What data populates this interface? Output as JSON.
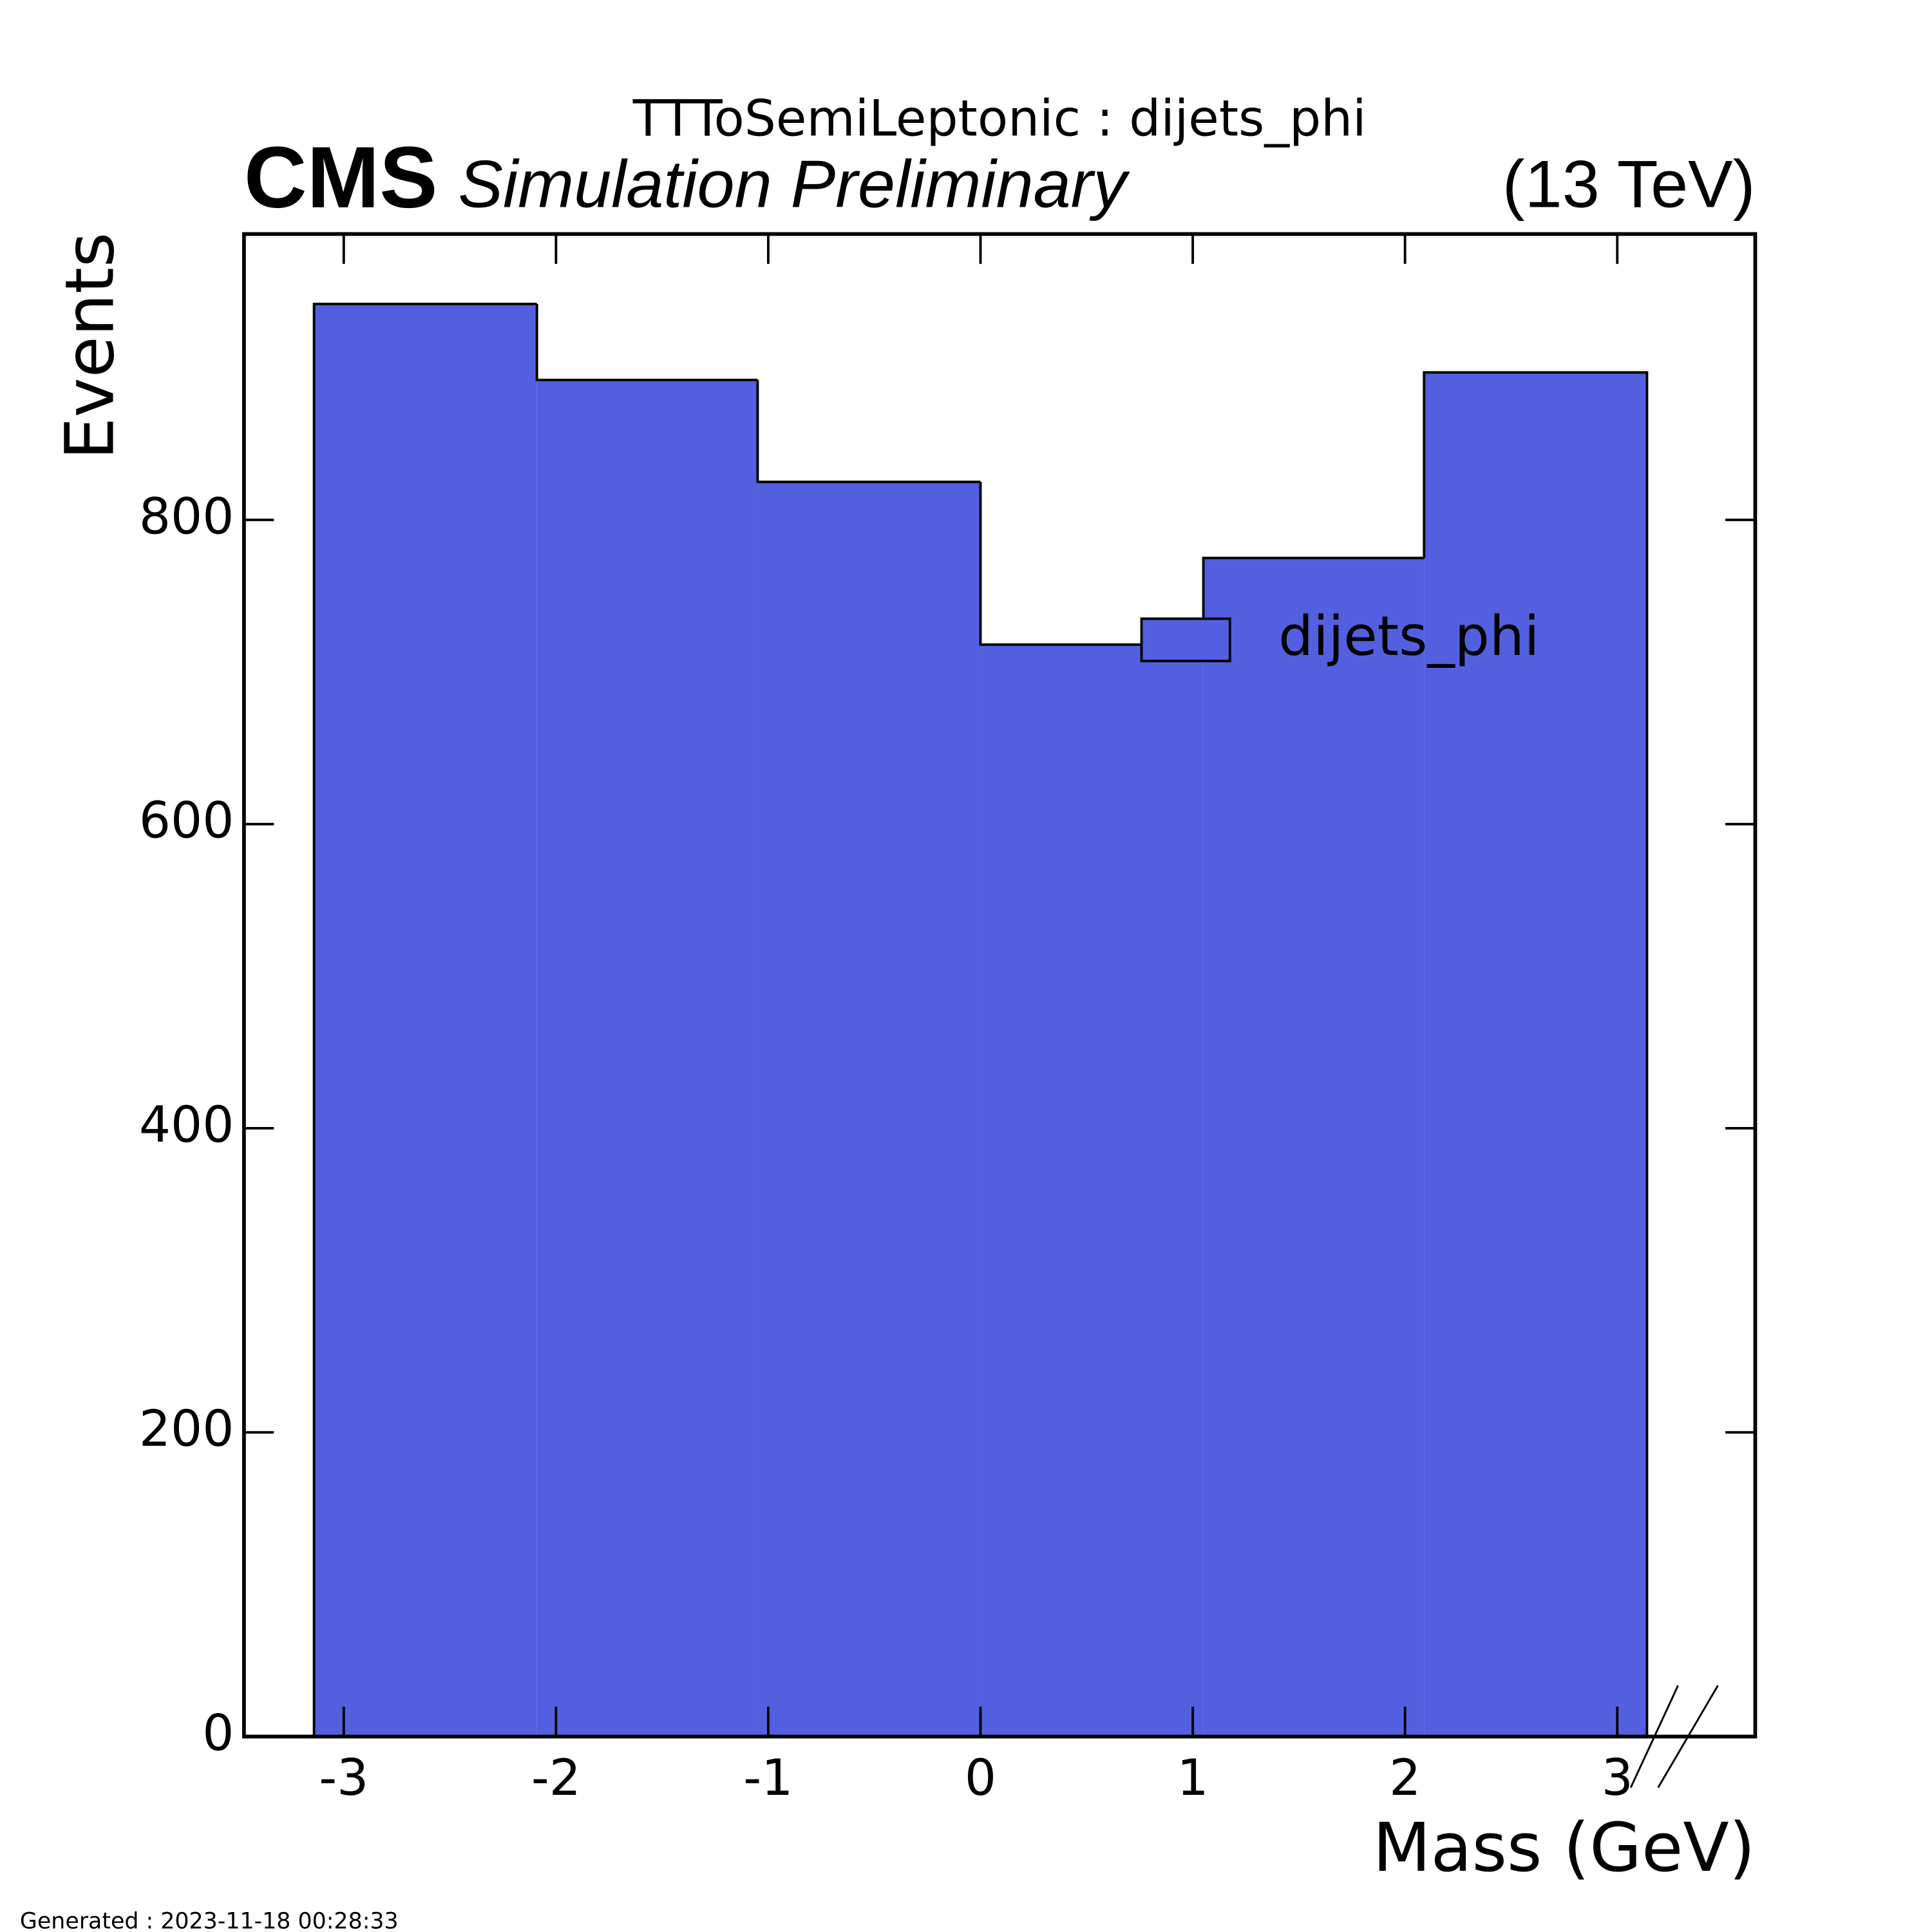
{
  "chart_data": {
    "type": "histogram",
    "title": "TTToSemiLeptonic : dijets_phi",
    "experiment": "CMS",
    "status": "Simulation Preliminary",
    "energy": "(13 TeV)",
    "x_label": "Mass (GeV)",
    "y_label": "Events",
    "footer": "Generated : 2023-11-18 00:28:33",
    "bins": [
      -3.14,
      -2.09,
      -1.05,
      0,
      1.05,
      2.09,
      3.14
    ],
    "series": [
      {
        "name": "dijets_phi",
        "color": "#5260e0",
        "values": [
          942,
          892,
          825,
          718,
          775,
          897
        ]
      }
    ],
    "xlim": [
      -3.47,
      3.65
    ],
    "ylim": [
      0,
      988
    ],
    "xticks": [
      -3,
      -2,
      -1,
      0,
      1,
      2,
      3
    ],
    "yticks": [
      0,
      200,
      400,
      600,
      800
    ],
    "legend": "upper right"
  }
}
